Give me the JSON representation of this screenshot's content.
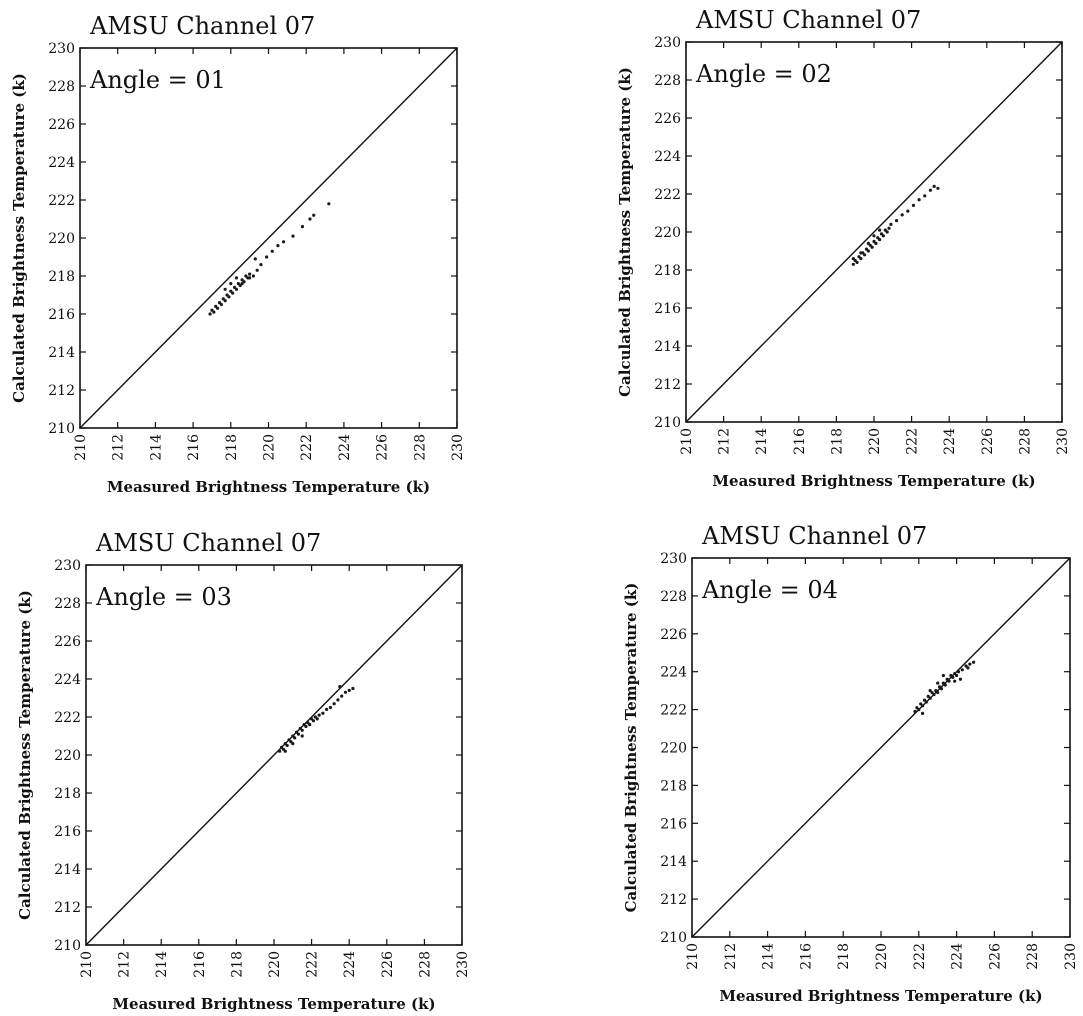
{
  "chart_data": [
    {
      "type": "scatter",
      "title": "AMSU Channel  07",
      "annotation": "Angle = 01",
      "xlabel": "Measured Brightness Temperature (k)",
      "ylabel": "Calculated Brightness Temperature (k)",
      "xlim": [
        210,
        230
      ],
      "ylim": [
        210,
        230
      ],
      "xticks": [
        "210",
        "212",
        "214",
        "216",
        "218",
        "220",
        "222",
        "224",
        "226",
        "228",
        "230"
      ],
      "yticks": [
        "210",
        "212",
        "214",
        "216",
        "218",
        "220",
        "222",
        "224",
        "226",
        "228",
        "230"
      ],
      "reference_line": "y = x",
      "grid": false,
      "points": [
        [
          216.9,
          216.0
        ],
        [
          217.0,
          216.2
        ],
        [
          217.1,
          216.1
        ],
        [
          217.2,
          216.4
        ],
        [
          217.3,
          216.3
        ],
        [
          217.4,
          216.6
        ],
        [
          217.5,
          216.5
        ],
        [
          217.6,
          216.8
        ],
        [
          217.7,
          216.7
        ],
        [
          217.8,
          217.0
        ],
        [
          217.9,
          216.9
        ],
        [
          218.0,
          217.2
        ],
        [
          218.1,
          217.1
        ],
        [
          218.2,
          217.4
        ],
        [
          218.3,
          217.3
        ],
        [
          218.4,
          217.6
        ],
        [
          218.5,
          217.5
        ],
        [
          218.6,
          217.8
        ],
        [
          218.7,
          217.7
        ],
        [
          218.8,
          218.0
        ],
        [
          218.9,
          217.9
        ],
        [
          219.0,
          218.1
        ],
        [
          219.2,
          218.0
        ],
        [
          219.4,
          218.3
        ],
        [
          219.0,
          217.9
        ],
        [
          218.6,
          217.6
        ],
        [
          218.3,
          217.9
        ],
        [
          218.0,
          217.6
        ],
        [
          217.7,
          217.3
        ],
        [
          219.6,
          218.6
        ],
        [
          219.9,
          219.0
        ],
        [
          220.2,
          219.3
        ],
        [
          220.5,
          219.6
        ],
        [
          220.8,
          219.8
        ],
        [
          221.3,
          220.1
        ],
        [
          221.8,
          220.6
        ],
        [
          222.2,
          221.0
        ],
        [
          222.4,
          221.2
        ],
        [
          223.2,
          221.8
        ],
        [
          219.3,
          218.9
        ]
      ]
    },
    {
      "type": "scatter",
      "title": "AMSU Channel  07",
      "annotation": "Angle = 02",
      "xlabel": "Measured Brightness Temperature (k)",
      "ylabel": "Calculated Brightness Temperature (k)",
      "xlim": [
        210,
        230
      ],
      "ylim": [
        210,
        230
      ],
      "xticks": [
        "210",
        "212",
        "214",
        "216",
        "218",
        "220",
        "222",
        "224",
        "226",
        "228",
        "230"
      ],
      "yticks": [
        "210",
        "212",
        "214",
        "216",
        "218",
        "220",
        "222",
        "224",
        "226",
        "228",
        "230"
      ],
      "reference_line": "y = x",
      "grid": false,
      "points": [
        [
          218.9,
          218.3
        ],
        [
          219.0,
          218.5
        ],
        [
          219.1,
          218.4
        ],
        [
          219.2,
          218.7
        ],
        [
          219.3,
          218.6
        ],
        [
          219.4,
          218.9
        ],
        [
          219.5,
          218.8
        ],
        [
          219.6,
          219.1
        ],
        [
          219.7,
          219.0
        ],
        [
          219.8,
          219.3
        ],
        [
          219.9,
          219.2
        ],
        [
          220.0,
          219.5
        ],
        [
          220.1,
          219.4
        ],
        [
          220.2,
          219.7
        ],
        [
          220.3,
          219.6
        ],
        [
          220.4,
          219.9
        ],
        [
          220.5,
          219.8
        ],
        [
          220.6,
          220.1
        ],
        [
          220.7,
          220.0
        ],
        [
          220.8,
          220.2
        ],
        [
          219.3,
          218.9
        ],
        [
          219.7,
          219.4
        ],
        [
          220.0,
          219.8
        ],
        [
          220.3,
          220.1
        ],
        [
          220.9,
          220.4
        ],
        [
          221.2,
          220.6
        ],
        [
          221.5,
          220.9
        ],
        [
          221.8,
          221.1
        ],
        [
          222.1,
          221.4
        ],
        [
          222.4,
          221.7
        ],
        [
          222.7,
          221.9
        ],
        [
          223.0,
          222.2
        ],
        [
          223.2,
          222.4
        ],
        [
          223.4,
          222.3
        ],
        [
          218.9,
          218.6
        ]
      ]
    },
    {
      "type": "scatter",
      "title": "AMSU Channel  07",
      "annotation": "Angle = 03",
      "xlabel": "Measured Brightness Temperature (k)",
      "ylabel": "Calculated Brightness Temperature (k)",
      "xlim": [
        210,
        230
      ],
      "ylim": [
        210,
        230
      ],
      "xticks": [
        "210",
        "212",
        "214",
        "216",
        "218",
        "220",
        "222",
        "224",
        "226",
        "228",
        "230"
      ],
      "yticks": [
        "210",
        "212",
        "214",
        "216",
        "218",
        "220",
        "222",
        "224",
        "226",
        "228",
        "230"
      ],
      "reference_line": "y = x",
      "grid": false,
      "points": [
        [
          220.3,
          220.2
        ],
        [
          220.4,
          220.4
        ],
        [
          220.5,
          220.3
        ],
        [
          220.6,
          220.6
        ],
        [
          220.7,
          220.5
        ],
        [
          220.8,
          220.8
        ],
        [
          220.9,
          220.7
        ],
        [
          221.0,
          221.0
        ],
        [
          221.1,
          220.9
        ],
        [
          221.2,
          221.2
        ],
        [
          221.3,
          221.1
        ],
        [
          221.4,
          221.4
        ],
        [
          221.5,
          221.3
        ],
        [
          221.6,
          221.6
        ],
        [
          221.7,
          221.5
        ],
        [
          221.8,
          221.7
        ],
        [
          221.9,
          221.6
        ],
        [
          222.0,
          221.9
        ],
        [
          222.1,
          221.8
        ],
        [
          222.2,
          222.0
        ],
        [
          222.3,
          221.9
        ],
        [
          222.4,
          222.1
        ],
        [
          222.6,
          222.2
        ],
        [
          222.8,
          222.4
        ],
        [
          223.0,
          222.5
        ],
        [
          223.2,
          222.7
        ],
        [
          223.4,
          222.9
        ],
        [
          223.6,
          223.1
        ],
        [
          223.8,
          223.3
        ],
        [
          224.0,
          223.4
        ],
        [
          224.2,
          223.5
        ],
        [
          223.5,
          223.6
        ],
        [
          220.6,
          220.2
        ],
        [
          221.0,
          220.6
        ],
        [
          221.5,
          221.0
        ]
      ]
    },
    {
      "type": "scatter",
      "title": "AMSU Channel  07",
      "annotation": "Angle = 04",
      "xlabel": "Measured Brightness Temperature (k)",
      "ylabel": "Calculated Brightness Temperature (k)",
      "xlim": [
        210,
        230
      ],
      "ylim": [
        210,
        230
      ],
      "xticks": [
        "210",
        "212",
        "214",
        "216",
        "218",
        "220",
        "222",
        "224",
        "226",
        "228",
        "230"
      ],
      "yticks": [
        "210",
        "212",
        "214",
        "216",
        "218",
        "220",
        "222",
        "224",
        "226",
        "228",
        "230"
      ],
      "reference_line": "y = x",
      "grid": false,
      "points": [
        [
          221.8,
          221.9
        ],
        [
          221.9,
          222.1
        ],
        [
          222.0,
          222.0
        ],
        [
          222.1,
          222.3
        ],
        [
          222.2,
          222.2
        ],
        [
          222.3,
          222.5
        ],
        [
          222.4,
          222.4
        ],
        [
          222.5,
          222.7
        ],
        [
          222.6,
          222.6
        ],
        [
          222.7,
          222.9
        ],
        [
          222.8,
          222.8
        ],
        [
          222.9,
          223.0
        ],
        [
          223.0,
          222.9
        ],
        [
          223.1,
          223.2
        ],
        [
          223.2,
          223.1
        ],
        [
          223.3,
          223.4
        ],
        [
          223.4,
          223.3
        ],
        [
          223.5,
          223.6
        ],
        [
          223.6,
          223.5
        ],
        [
          223.7,
          223.8
        ],
        [
          223.8,
          223.7
        ],
        [
          223.9,
          223.9
        ],
        [
          224.0,
          223.8
        ],
        [
          224.1,
          224.0
        ],
        [
          224.3,
          224.1
        ],
        [
          224.5,
          224.3
        ],
        [
          224.7,
          224.4
        ],
        [
          224.9,
          224.5
        ],
        [
          223.3,
          223.8
        ],
        [
          223.0,
          223.4
        ],
        [
          222.6,
          223.0
        ],
        [
          224.2,
          223.6
        ],
        [
          223.9,
          223.5
        ],
        [
          224.6,
          224.2
        ],
        [
          222.2,
          221.8
        ]
      ]
    }
  ]
}
